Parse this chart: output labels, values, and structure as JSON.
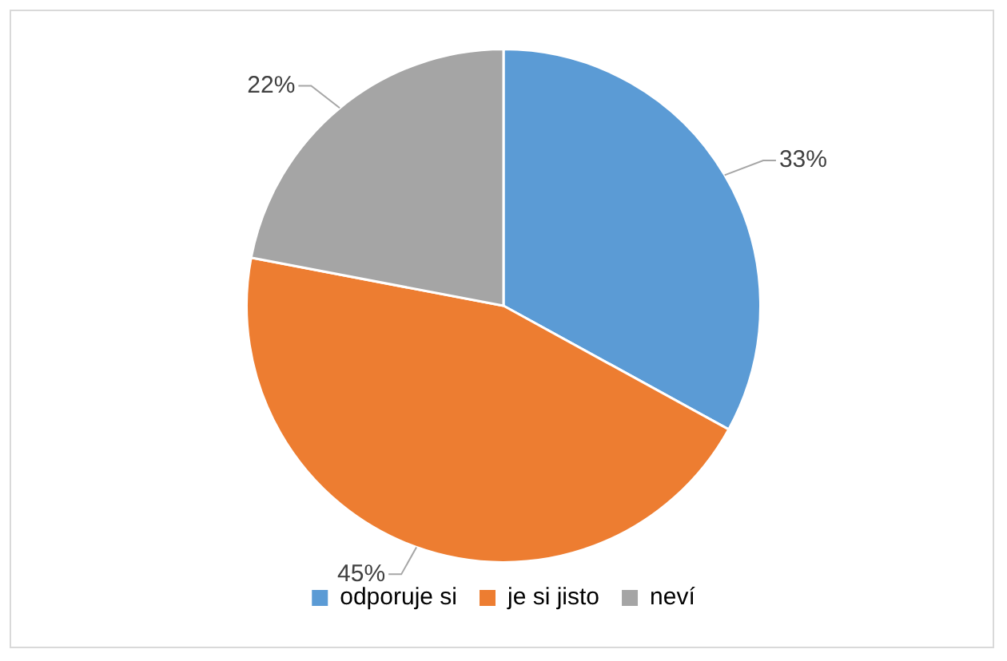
{
  "chart_data": {
    "type": "pie",
    "categories": [
      "odporuje si",
      "je si jisto",
      "neví"
    ],
    "values": [
      33,
      45,
      22
    ],
    "colors": [
      "#5b9bd5",
      "#ed7d31",
      "#a5a5a5"
    ],
    "value_labels": [
      "33%",
      "45%",
      "22%"
    ],
    "legend": "bottom"
  }
}
